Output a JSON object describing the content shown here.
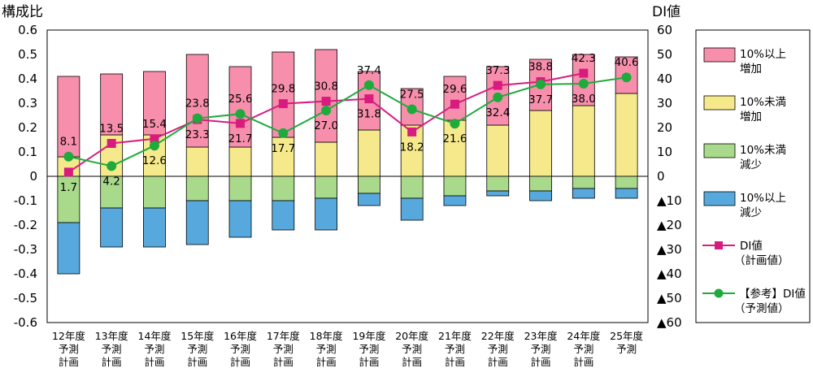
{
  "chart_data": {
    "type": "bar",
    "y_left_title": "構成比",
    "y_right_title": "DI値",
    "y_left_ticks": [
      "0.6",
      "0.5",
      "0.4",
      "0.3",
      "0.2",
      "0.1",
      "0",
      "-0.1",
      "-0.2",
      "-0.3",
      "-0.4",
      "-0.5",
      "-0.6"
    ],
    "y_right_ticks": [
      "60",
      "50",
      "40",
      "30",
      "20",
      "10",
      "0",
      "▲10",
      "▲20",
      "▲30",
      "▲40",
      "▲50",
      "▲60"
    ],
    "ylim_left": [
      -0.6,
      0.6
    ],
    "ylim_right": [
      -60,
      60
    ],
    "categories": [
      [
        "12年度",
        "予測",
        "計画"
      ],
      [
        "13年度",
        "予測",
        "計画"
      ],
      [
        "14年度",
        "予測",
        "計画"
      ],
      [
        "15年度",
        "予測",
        "計画"
      ],
      [
        "16年度",
        "予測",
        "計画"
      ],
      [
        "17年度",
        "予測",
        "計画"
      ],
      [
        "18年度",
        "予測",
        "計画"
      ],
      [
        "19年度",
        "予測",
        "計画"
      ],
      [
        "20年度",
        "予測",
        "計画"
      ],
      [
        "21年度",
        "予測",
        "計画"
      ],
      [
        "22年度",
        "予測",
        "計画"
      ],
      [
        "23年度",
        "予測",
        "計画"
      ],
      [
        "24年度",
        "予測",
        "計画"
      ],
      [
        "25年度",
        "予測"
      ]
    ],
    "stacked_series": [
      {
        "key": "inc_small",
        "name": [
          "10%未満",
          "増加"
        ],
        "color": "#f5e98c",
        "values": [
          0.08,
          0.17,
          0.17,
          0.12,
          0.12,
          0.16,
          0.14,
          0.19,
          0.21,
          0.23,
          0.21,
          0.27,
          0.29,
          0.34
        ]
      },
      {
        "key": "inc_large",
        "name": [
          "10%以上",
          "増加"
        ],
        "color": "#f78fac",
        "values": [
          0.33,
          0.25,
          0.26,
          0.38,
          0.33,
          0.35,
          0.38,
          0.24,
          0.15,
          0.18,
          0.24,
          0.21,
          0.21,
          0.15
        ]
      },
      {
        "key": "dec_small",
        "name": [
          "10%未満",
          "減少"
        ],
        "color": "#a9d98a",
        "values": [
          -0.19,
          -0.13,
          -0.13,
          -0.1,
          -0.1,
          -0.1,
          -0.09,
          -0.07,
          -0.09,
          -0.08,
          -0.06,
          -0.06,
          -0.05,
          -0.05
        ]
      },
      {
        "key": "dec_large",
        "name": [
          "10%以上",
          "減少"
        ],
        "color": "#57a9dd",
        "values": [
          -0.21,
          -0.16,
          -0.16,
          -0.18,
          -0.15,
          -0.12,
          -0.13,
          -0.05,
          -0.09,
          -0.04,
          -0.02,
          -0.04,
          -0.04,
          -0.04
        ]
      }
    ],
    "line_series": [
      {
        "key": "di_plan",
        "name": [
          "DI値",
          "（計画値）"
        ],
        "color": "#d81b7f",
        "marker": "square",
        "values": [
          1.7,
          13.5,
          15.4,
          23.3,
          21.7,
          29.8,
          30.8,
          31.8,
          18.2,
          29.6,
          37.3,
          38.8,
          42.3,
          null
        ],
        "labels": [
          "1.7",
          "13.5",
          "15.4",
          "23.3",
          "21.7",
          "29.8",
          "30.8",
          "31.8",
          "18.2",
          "29.6",
          "37.3",
          "38.8",
          "42.3",
          null
        ]
      },
      {
        "key": "di_forecast",
        "name": [
          "【参考】DI値",
          "（予測値）"
        ],
        "color": "#1faa3c",
        "marker": "circle",
        "values": [
          8.1,
          4.2,
          12.6,
          23.8,
          25.6,
          17.7,
          27.0,
          37.4,
          27.5,
          21.6,
          32.4,
          37.7,
          38.0,
          40.6
        ],
        "labels": [
          "8.1",
          "4.2",
          "12.6",
          "23.8",
          "25.6",
          "17.7",
          "27.0",
          "37.4",
          "27.5",
          "21.6",
          "32.4",
          "37.7",
          "38.0",
          "40.6"
        ]
      }
    ],
    "legend_position": "right",
    "grid": false
  }
}
